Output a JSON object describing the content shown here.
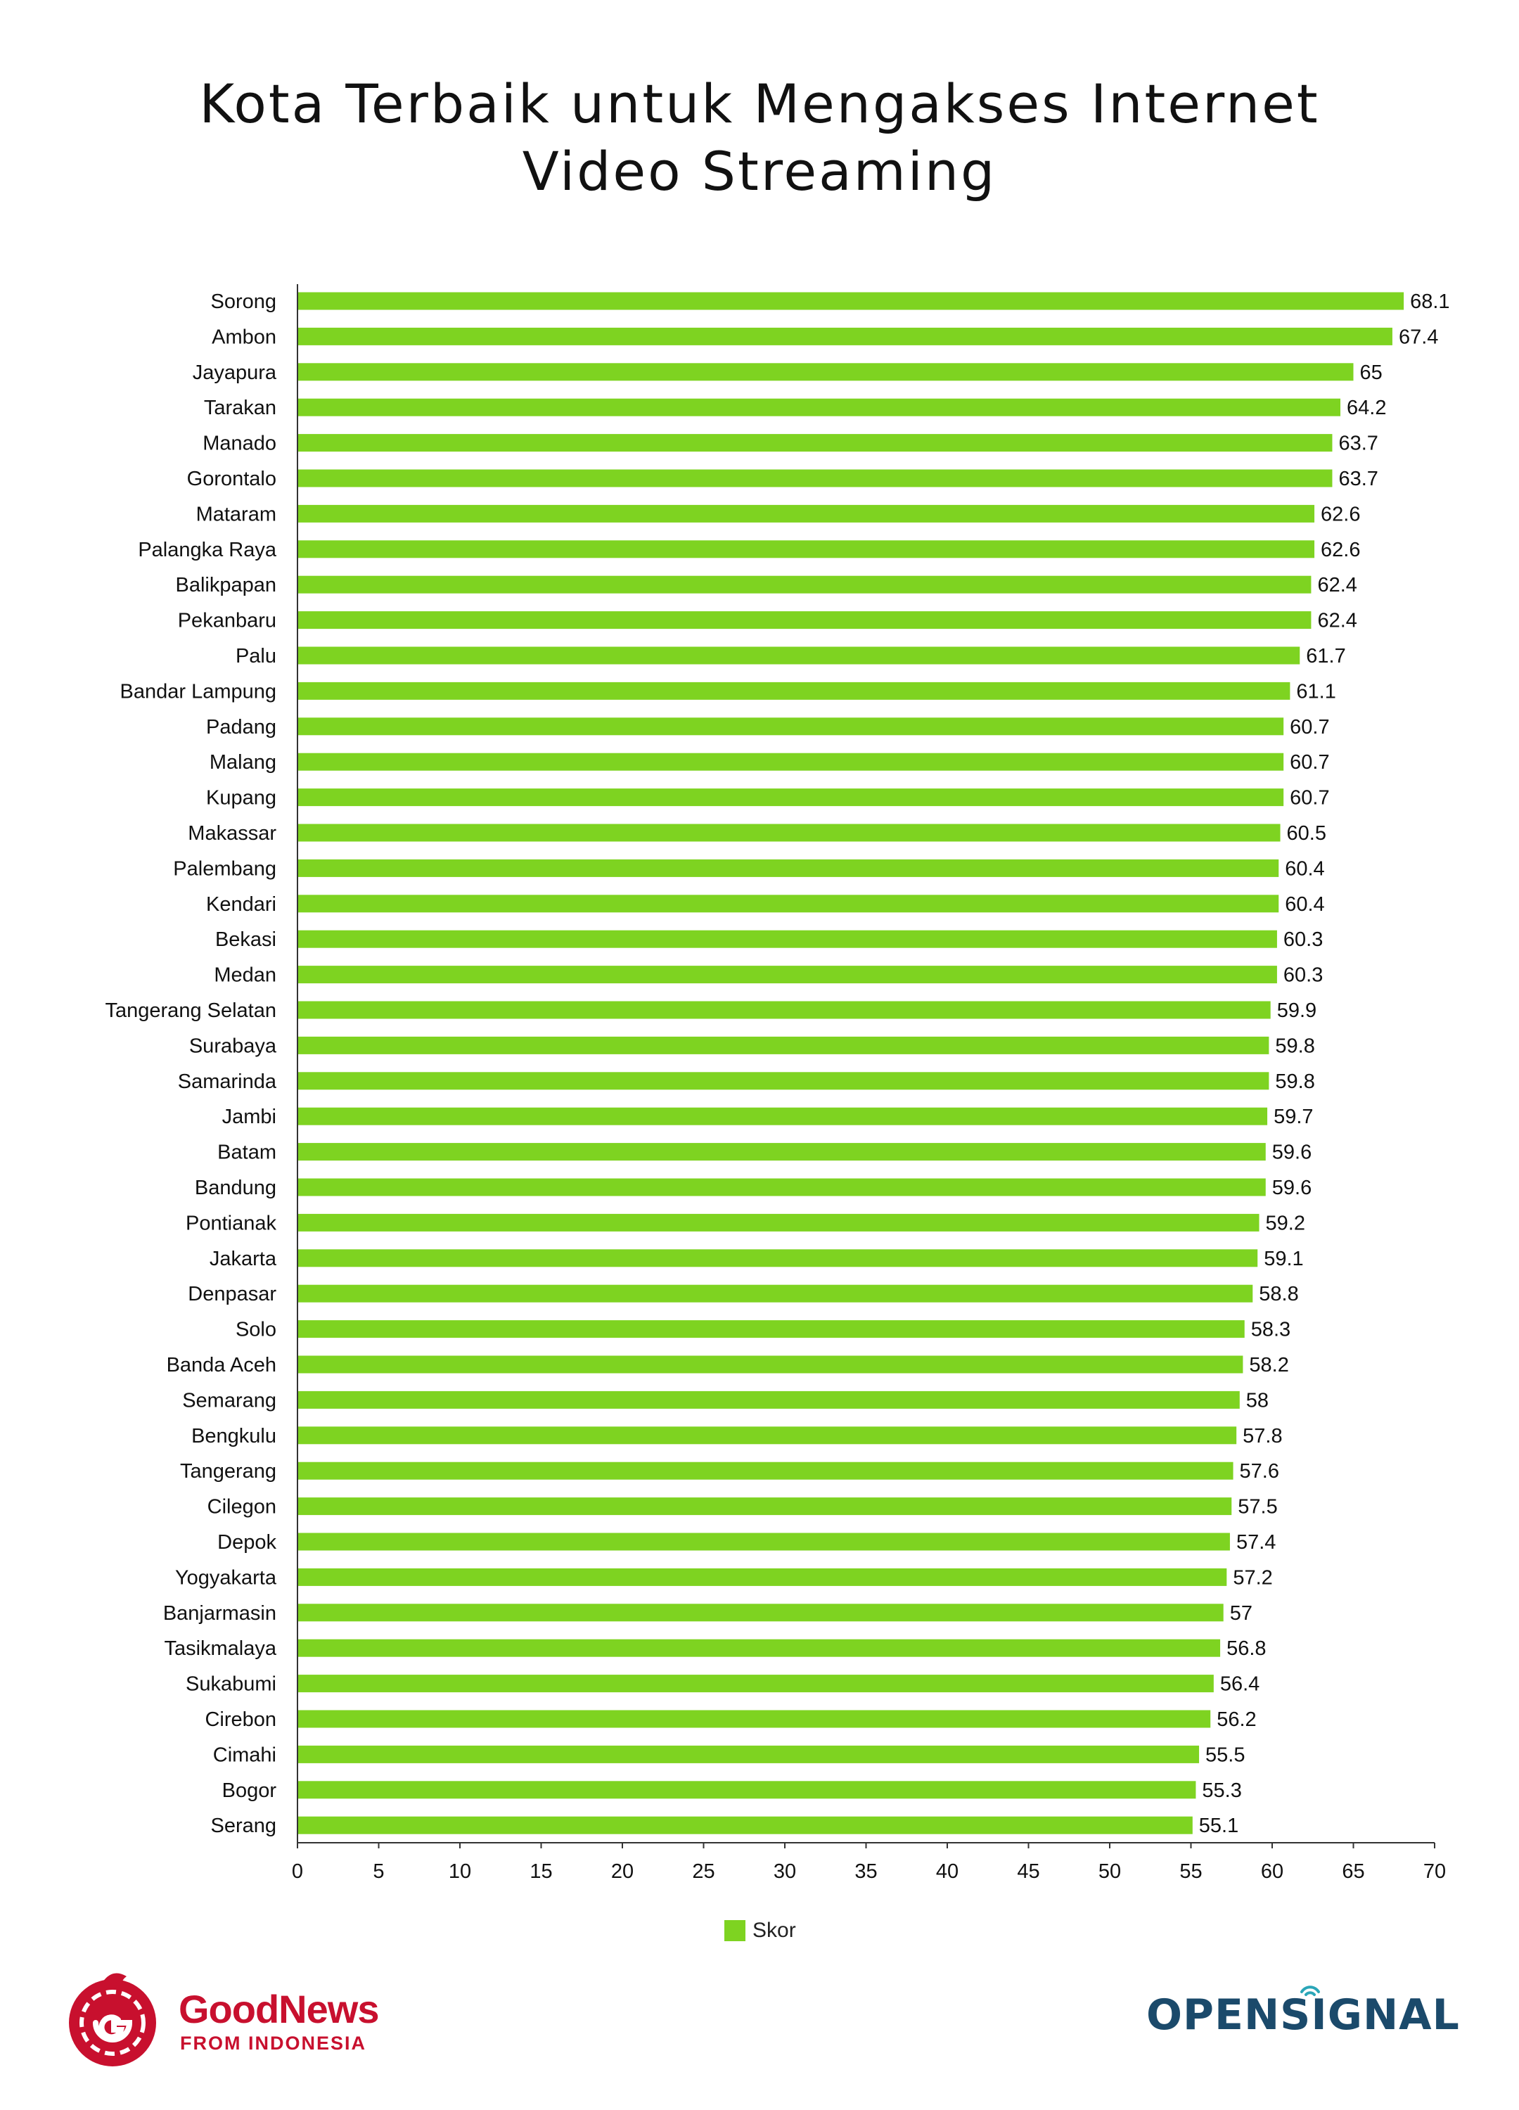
{
  "title_line1": "Kota Terbaik untuk Mengakses Internet",
  "title_line2": "Video Streaming",
  "colors": {
    "bar": "#7ed321",
    "axis": "#333333",
    "text": "#111111"
  },
  "legend": {
    "label": "Skor"
  },
  "brands": {
    "goodnews_name": "GoodNews",
    "goodnews_sub": "FROM INDONESIA",
    "opensignal": "OPENSIGNAL"
  },
  "chart_data": {
    "type": "bar",
    "orientation": "horizontal",
    "title": "Kota Terbaik untuk Mengakses Internet Video Streaming",
    "categories": [
      "Sorong",
      "Ambon",
      "Jayapura",
      "Tarakan",
      "Manado",
      "Gorontalo",
      "Mataram",
      "Palangka Raya",
      "Balikpapan",
      "Pekanbaru",
      "Palu",
      "Bandar Lampung",
      "Padang",
      "Malang",
      "Kupang",
      "Makassar",
      "Palembang",
      "Kendari",
      "Bekasi",
      "Medan",
      "Tangerang Selatan",
      "Surabaya",
      "Samarinda",
      "Jambi",
      "Batam",
      "Bandung",
      "Pontianak",
      "Jakarta",
      "Denpasar",
      "Solo",
      "Banda Aceh",
      "Semarang",
      "Bengkulu",
      "Tangerang",
      "Cilegon",
      "Depok",
      "Yogyakarta",
      "Banjarmasin",
      "Tasikmalaya",
      "Sukabumi",
      "Cirebon",
      "Cimahi",
      "Bogor",
      "Serang"
    ],
    "value_labels": [
      "68.1",
      "67.4",
      "65",
      "64.2",
      "63.7",
      "63.7",
      "62.6",
      "62.6",
      "62.4",
      "62.4",
      "61.7",
      "61.1",
      "60.7",
      "60.7",
      "60.7",
      "60.5",
      "60.4",
      "60.4",
      "60.3",
      "60.3",
      "59.9",
      "59.8",
      "59.8",
      "59.7",
      "59.6",
      "59.6",
      "59.2",
      "59.1",
      "58.8",
      "58.3",
      "58.2",
      "58",
      "57.8",
      "57.6",
      "57.5",
      "57.4",
      "57.2",
      "57",
      "56.8",
      "56.4",
      "56.2",
      "55.5",
      "55.3",
      "55.1"
    ],
    "series": [
      {
        "name": "Skor",
        "values": [
          68.1,
          67.4,
          65,
          64.2,
          63.7,
          63.7,
          62.6,
          62.6,
          62.4,
          62.4,
          61.7,
          61.1,
          60.7,
          60.7,
          60.7,
          60.5,
          60.4,
          60.4,
          60.3,
          60.3,
          59.9,
          59.8,
          59.8,
          59.7,
          59.6,
          59.6,
          59.2,
          59.1,
          58.8,
          58.3,
          58.2,
          58,
          57.8,
          57.6,
          57.5,
          57.4,
          57.2,
          57,
          56.8,
          56.4,
          56.2,
          55.5,
          55.3,
          55.1
        ]
      }
    ],
    "xlim": [
      0,
      70
    ],
    "xticks": [
      "0",
      "5",
      "10",
      "15",
      "20",
      "25",
      "30",
      "35",
      "40",
      "45",
      "50",
      "55",
      "60",
      "65",
      "70"
    ],
    "xlabel": "",
    "ylabel": "",
    "grid": false,
    "legend_position": "bottom"
  }
}
